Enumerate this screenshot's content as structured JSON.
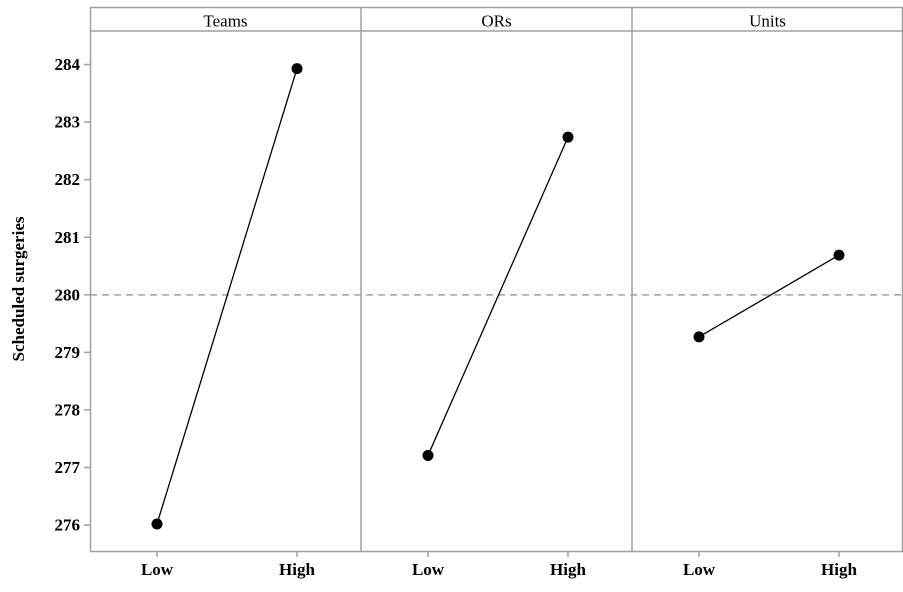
{
  "chart_data": {
    "type": "line",
    "title": "",
    "ylabel": "Scheduled surgeries",
    "ylim": [
      275.55,
      285.0
    ],
    "yticks": [
      276,
      277,
      278,
      279,
      280,
      281,
      282,
      283,
      284
    ],
    "reference_line": 280,
    "categories": [
      "Low",
      "High"
    ],
    "panels": [
      {
        "name": "Teams",
        "values": [
          276.02,
          283.93
        ]
      },
      {
        "name": "ORs",
        "values": [
          277.21,
          282.74
        ]
      },
      {
        "name": "Units",
        "values": [
          279.27,
          280.69
        ]
      }
    ],
    "grid": false,
    "legend": "none"
  },
  "colors": {
    "line": "#000000",
    "marker": "#000000",
    "frame": "#a0a0a0",
    "reference": "#a0a0a0",
    "text": "#000000"
  }
}
